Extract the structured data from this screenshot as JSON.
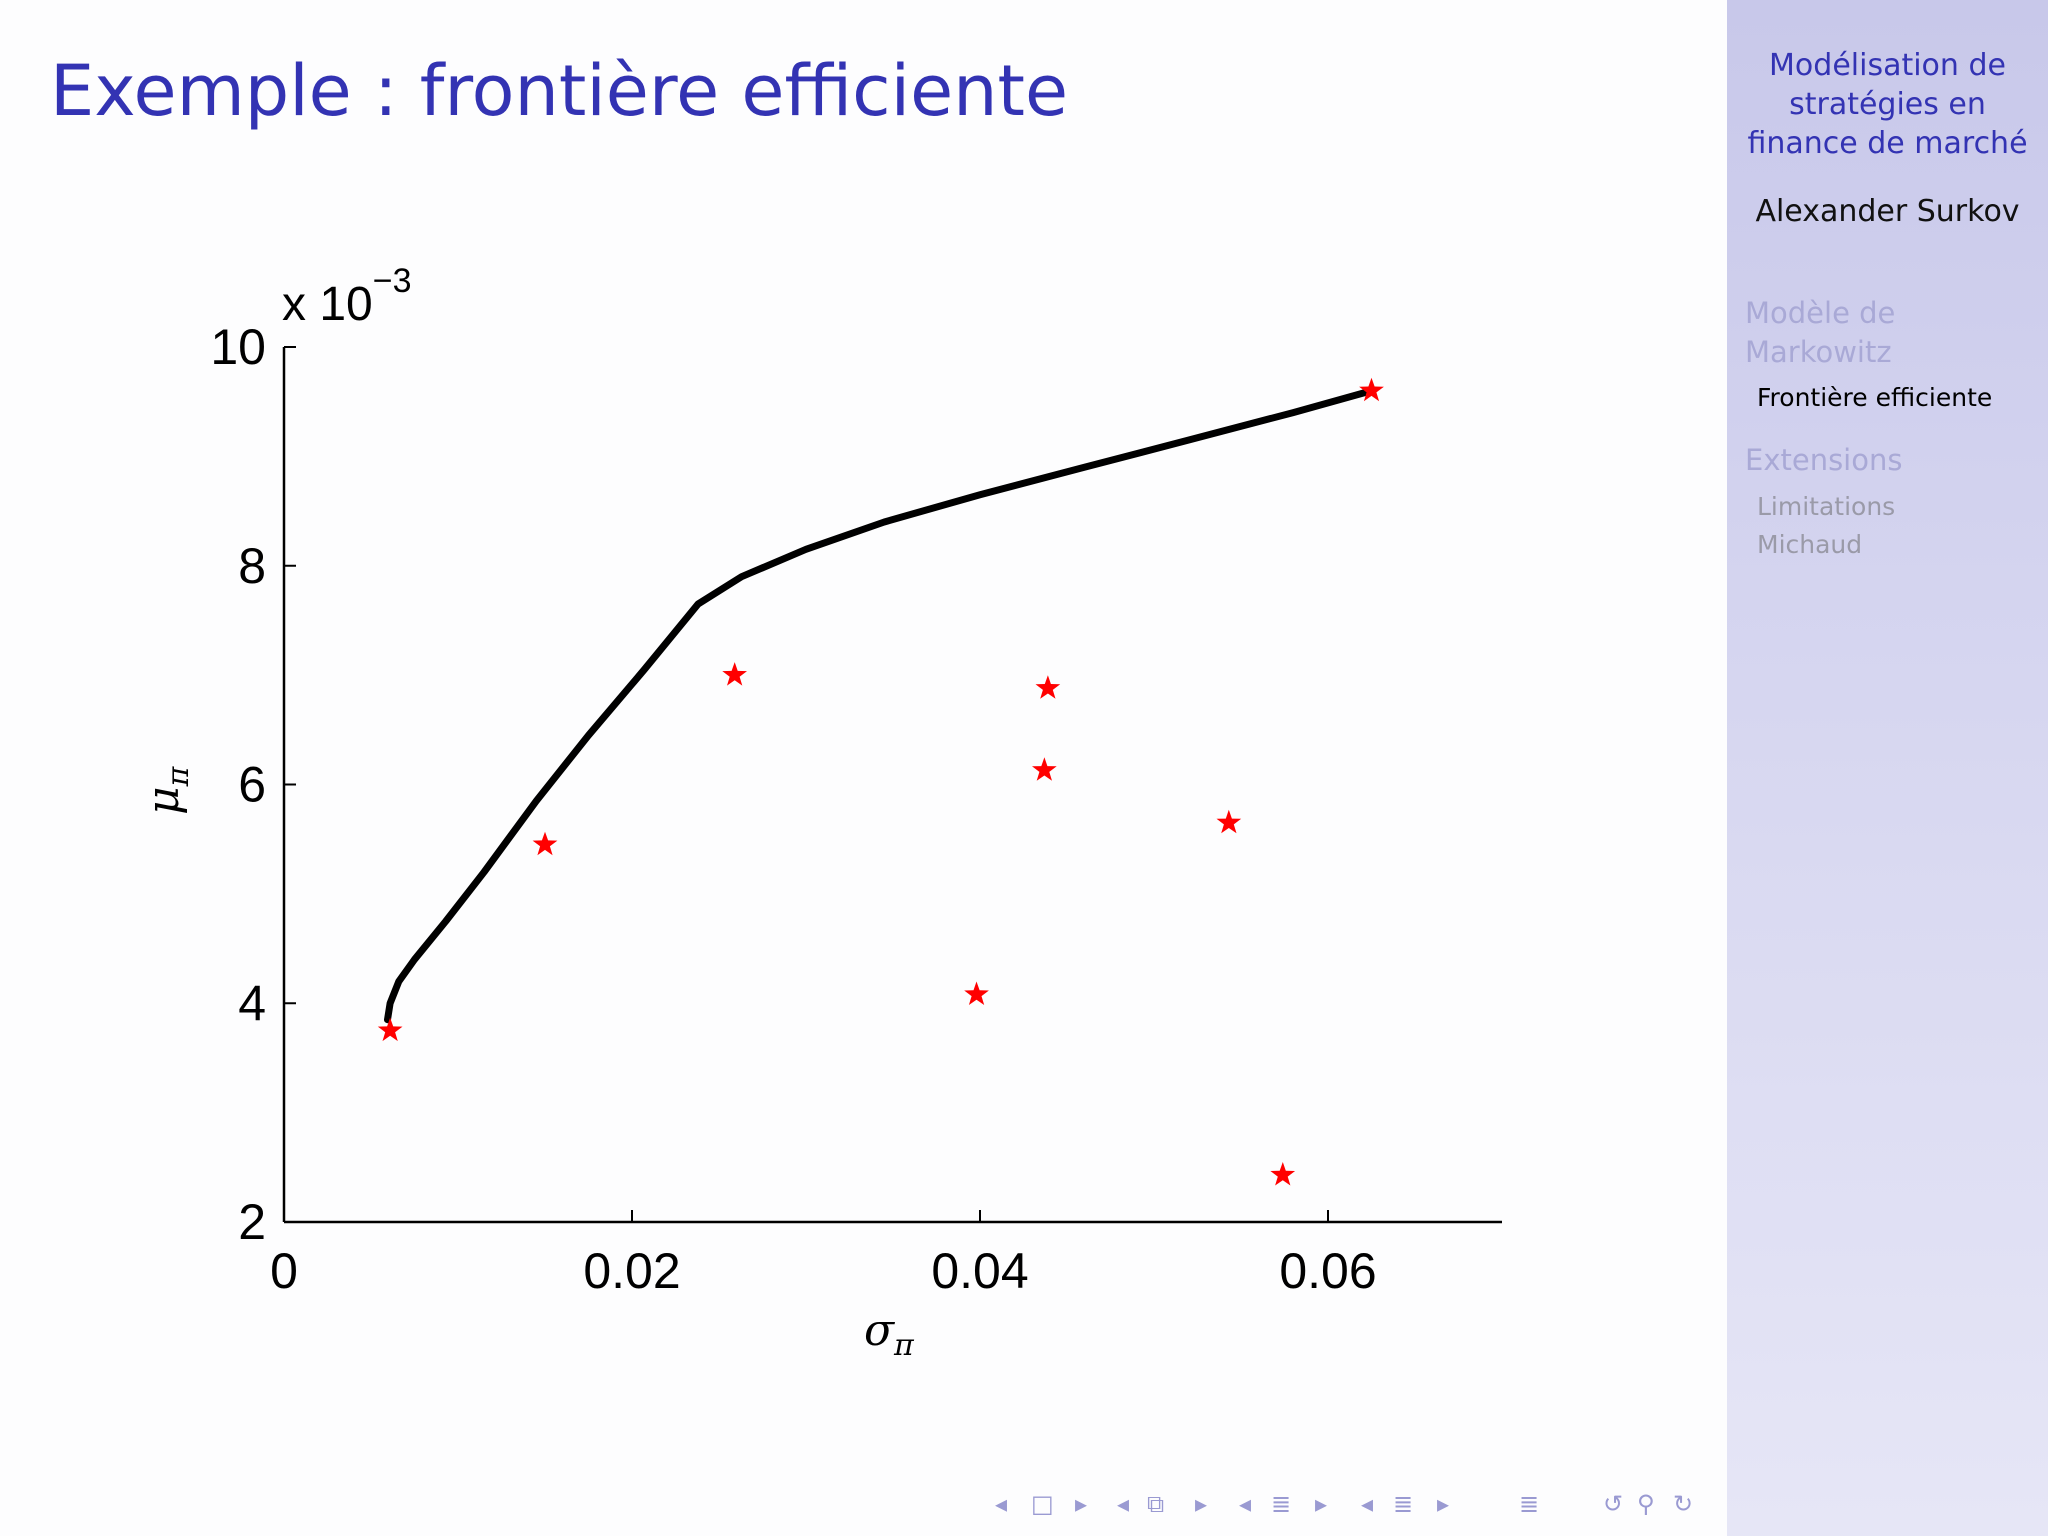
{
  "slide": {
    "title": "Exemple : frontière efficiente"
  },
  "sidebar": {
    "title_lines": [
      "Modélisation de",
      "stratégies en",
      "finance de marché"
    ],
    "author": "Alexander Surkov",
    "sections": [
      {
        "lines": [
          "Modèle de",
          "Markowitz"
        ],
        "subsections": [
          {
            "label": "Frontière efficiente",
            "active": true
          }
        ]
      },
      {
        "lines": [
          "Extensions"
        ],
        "subsections": [
          {
            "label": "Limitations",
            "active": false
          },
          {
            "label": "Michaud",
            "active": false
          }
        ]
      }
    ]
  },
  "chart_data": {
    "type": "scatter",
    "title": "",
    "xlabel": "σ",
    "xlabel_sub": "π",
    "ylabel": "μ",
    "ylabel_sub": "π",
    "y_multiplier": "x 10",
    "y_multiplier_exp": "−3",
    "xlim": [
      0,
      0.07
    ],
    "ylim": [
      2,
      10
    ],
    "x_ticks": [
      0,
      0.02,
      0.04,
      0.06
    ],
    "x_tick_labels": [
      "0",
      "0.02",
      "0.04",
      "0.06"
    ],
    "y_ticks": [
      2,
      4,
      6,
      8,
      10
    ],
    "y_tick_labels": [
      "2",
      "4",
      "6",
      "8",
      "10"
    ],
    "grid": false,
    "series": [
      {
        "kind": "line",
        "color": "#000000",
        "x": [
          0.00595,
          0.0061,
          0.0066,
          0.0075,
          0.0093,
          0.0115,
          0.0145,
          0.0175,
          0.0207,
          0.0238,
          0.0263,
          0.03,
          0.0345,
          0.04,
          0.046,
          0.052,
          0.058,
          0.0625
        ],
        "y": [
          3.85,
          4.0,
          4.2,
          4.4,
          4.75,
          5.2,
          5.85,
          6.45,
          7.05,
          7.65,
          7.9,
          8.15,
          8.4,
          8.65,
          8.9,
          9.15,
          9.4,
          9.6
        ]
      },
      {
        "kind": "scatter",
        "marker": "star",
        "color": "#ff0000",
        "x": [
          0.0061,
          0.015,
          0.0259,
          0.0398,
          0.0437,
          0.0439,
          0.0543,
          0.0574,
          0.0625
        ],
        "y": [
          3.75,
          5.45,
          7.0,
          4.08,
          6.13,
          6.88,
          5.65,
          2.43,
          9.6
        ]
      }
    ]
  },
  "nav": {
    "icons": [
      "nav-prev-icon",
      "slide-icon",
      "nav-next-icon",
      "nav-prev-icon",
      "frame-icon",
      "nav-next-icon",
      "nav-prev-icon",
      "subsection-icon",
      "nav-next-icon",
      "nav-prev-icon",
      "section-icon",
      "nav-next-icon",
      "menu-icon",
      "back-icon",
      "search-icon",
      "forward-icon"
    ],
    "accent": "#9a9ad2"
  }
}
